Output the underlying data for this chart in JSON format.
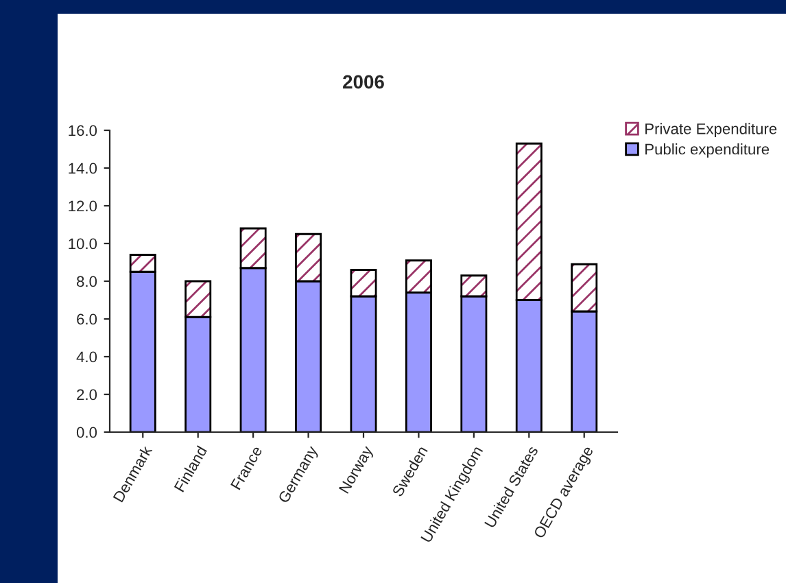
{
  "chart_data": {
    "type": "bar",
    "title": "2006",
    "stacked": true,
    "categories": [
      "Denmark",
      "Finland",
      "France",
      "Germany",
      "Norway",
      "Sweden",
      "United Kingdom",
      "United States",
      "OECD average"
    ],
    "series": [
      {
        "name": "Public expenditure",
        "color": "#9999ff",
        "values": [
          8.5,
          6.1,
          8.7,
          8.0,
          7.2,
          7.4,
          7.2,
          7.0,
          6.4
        ]
      },
      {
        "name": "Private Expenditure",
        "color": "#993366",
        "values": [
          0.9,
          1.9,
          2.1,
          2.5,
          1.4,
          1.7,
          1.1,
          8.3,
          2.5
        ]
      }
    ],
    "ylim": [
      0,
      16
    ],
    "yticks": [
      {
        "value": 0,
        "label": "0.0"
      },
      {
        "value": 2,
        "label": "2.0"
      },
      {
        "value": 4,
        "label": "4.0"
      },
      {
        "value": 6,
        "label": "6.0"
      },
      {
        "value": 8,
        "label": "8.0"
      },
      {
        "value": 10,
        "label": "10.0"
      },
      {
        "value": 12,
        "label": "12.0"
      },
      {
        "value": 14,
        "label": "14.0"
      },
      {
        "value": 16,
        "label": "16.0"
      }
    ],
    "grid": false,
    "legend": "top right"
  }
}
